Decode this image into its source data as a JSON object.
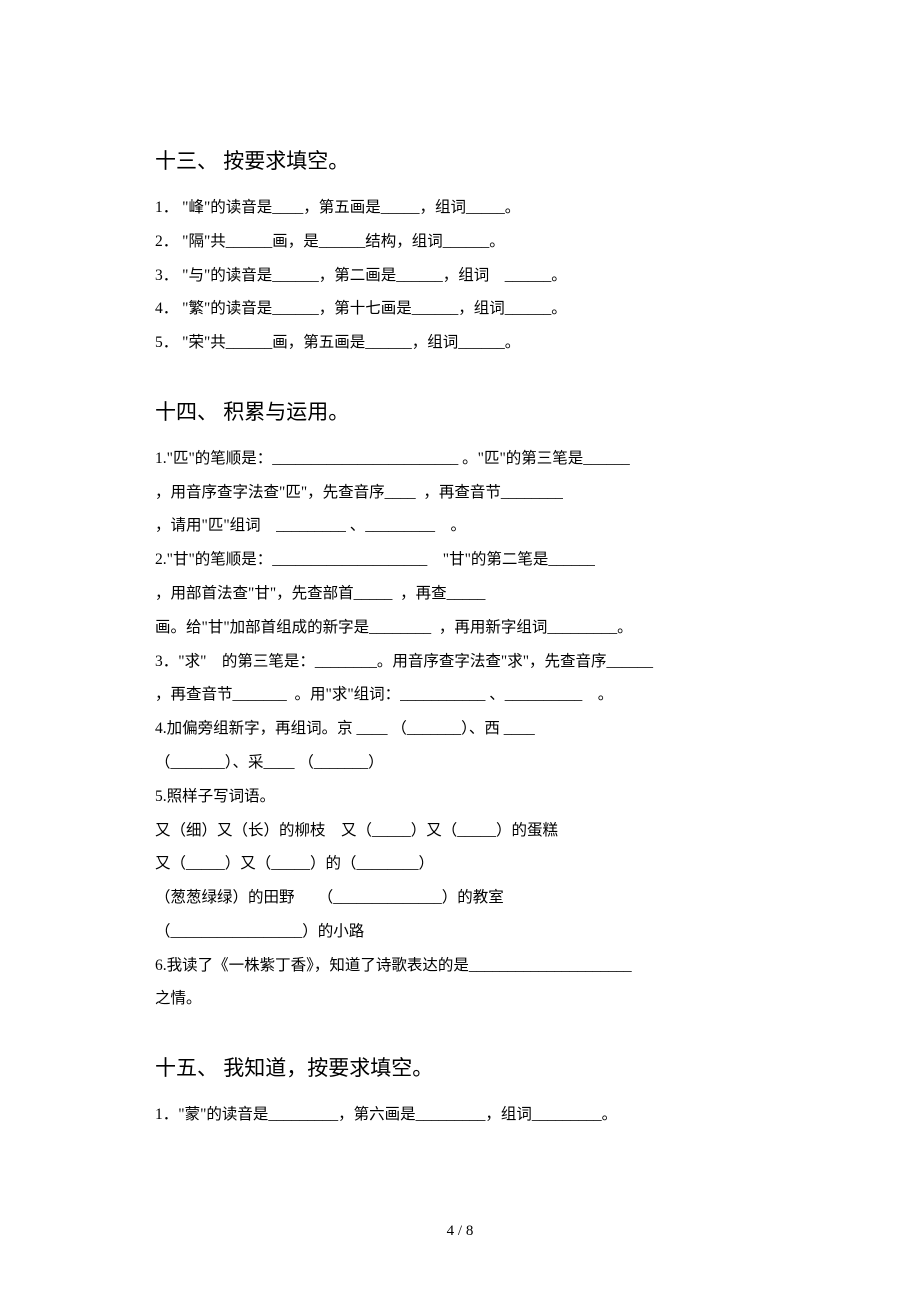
{
  "section13": {
    "heading": "十三、 按要求填空。",
    "lines": [
      "1． \"峰\"的读音是____，第五画是_____，组词_____。",
      "2． \"隔\"共______画，是______结构，组词______。",
      "3． \"与\"的读音是______，第二画是______，组词　______。",
      "4． \"繁\"的读音是______，第十七画是______，组词______。",
      "5． \"荣\"共______画，第五画是______，组词______。"
    ]
  },
  "section14": {
    "heading": "十四、 积累与运用。",
    "lines": [
      "1.\"匹\"的笔顺是：________________________ 。\"匹\"的第三笔是______",
      "，用音序查字法查\"匹\"，先查音序____  ，再查音节________",
      "，请用\"匹\"组词　_________ 、_________　。",
      "2.\"甘\"的笔顺是：____________________　\"甘\"的第二笔是______",
      "，用部首法查\"甘\"，先查部首_____  ，再查_____",
      "画。给\"甘\"加部首组成的新字是________  ，再用新字组词_________。",
      "3．\"求\"　的第三笔是：________。用音序查字法查\"求\"，先查音序______",
      "，再查音节_______  。用\"求\"组词：___________ 、__________　。",
      "4.加偏旁组新字，再组词。京 ____ （_______）、西 ____",
      "（_______）、采____ （_______）",
      "5.照样子写词语。",
      "又（细）又（长）的柳枝　又（_____）又（_____）的蛋糕",
      "又（_____）又（_____）的（________）",
      "（葱葱绿绿）的田野　　（______________）的教室",
      "（_________________）的小路",
      "6.我读了《一株紫丁香》，知道了诗歌表达的是_____________________",
      "之情。"
    ]
  },
  "section15": {
    "heading": "十五、 我知道，按要求填空。",
    "lines": [
      "1．\"蒙\"的读音是_________，第六画是_________，组词_________。"
    ]
  },
  "footer": "4 / 8"
}
